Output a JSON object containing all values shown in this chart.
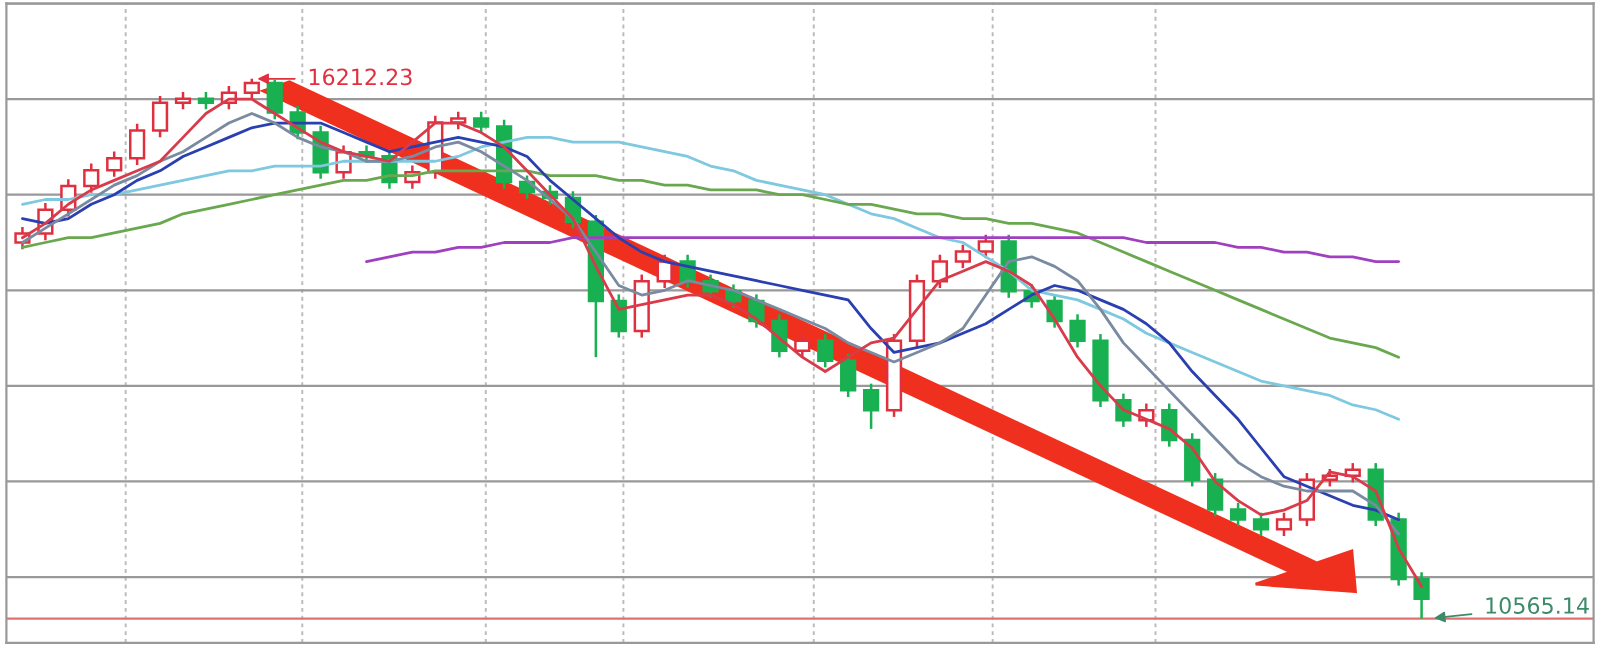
{
  "chart_data": {
    "type": "candlestick",
    "categories": [
      null,
      null,
      null,
      null,
      null,
      null,
      null,
      null,
      null,
      null,
      null,
      null,
      null,
      null,
      null,
      null,
      null,
      null,
      null,
      null,
      null,
      null,
      null,
      null,
      null,
      null,
      null,
      null,
      null,
      null,
      null,
      null,
      null,
      null,
      null,
      null,
      null,
      null,
      null,
      null,
      null,
      null,
      null,
      null,
      null,
      null,
      null,
      null,
      null,
      null,
      null,
      null,
      null,
      null,
      null,
      null,
      null,
      null,
      null,
      null,
      null,
      null
    ],
    "tick_labels": false,
    "grid": true,
    "legend": false,
    "series": [
      {
        "type": "line",
        "color": "#7ec8e0",
        "values": [
          14900,
          14950,
          14950,
          15000,
          15000,
          15050,
          15100,
          15150,
          15200,
          15250,
          15250,
          15300,
          15300,
          15300,
          15350,
          15350,
          15350,
          15350,
          15350,
          15400,
          15500,
          15550,
          15600,
          15600,
          15550,
          15550,
          15550,
          15500,
          15450,
          15400,
          15300,
          15250,
          15150,
          15100,
          15050,
          15000,
          14900,
          14800,
          14750,
          14650,
          14550,
          14500,
          14350,
          14200,
          14000,
          13950,
          13900,
          13800,
          13700,
          13550,
          13450,
          13350,
          13250,
          13150,
          13050,
          13000,
          12950,
          12900,
          12800,
          12750,
          12650,
          null
        ]
      },
      {
        "type": "line",
        "color": "#6aa84f",
        "values": [
          14450,
          14500,
          14550,
          14550,
          14600,
          14650,
          14700,
          14800,
          14850,
          14900,
          14950,
          15000,
          15050,
          15100,
          15150,
          15150,
          15200,
          15200,
          15250,
          15250,
          15250,
          15250,
          15250,
          15200,
          15200,
          15200,
          15150,
          15150,
          15100,
          15100,
          15050,
          15050,
          15050,
          15000,
          15000,
          14950,
          14900,
          14900,
          14850,
          14800,
          14800,
          14750,
          14750,
          14700,
          14700,
          14650,
          14600,
          14500,
          14400,
          14300,
          14200,
          14100,
          14000,
          13900,
          13800,
          13700,
          13600,
          13500,
          13450,
          13400,
          13300,
          null
        ]
      },
      {
        "type": "line",
        "color": "#a040c0",
        "values": [
          null,
          null,
          null,
          null,
          null,
          null,
          null,
          null,
          null,
          null,
          null,
          null,
          null,
          null,
          null,
          14300,
          14350,
          14400,
          14400,
          14450,
          14450,
          14500,
          14500,
          14500,
          14550,
          14550,
          14550,
          14550,
          14550,
          14550,
          14550,
          14550,
          14550,
          14550,
          14550,
          14550,
          14550,
          14550,
          14550,
          14550,
          14550,
          14550,
          14550,
          14550,
          14550,
          14550,
          14550,
          14550,
          14550,
          14500,
          14500,
          14500,
          14500,
          14450,
          14450,
          14400,
          14400,
          14350,
          14350,
          14300,
          14300,
          null
        ]
      },
      {
        "type": "line",
        "color": "#2a3fb0",
        "values": [
          14750,
          14700,
          14750,
          14900,
          15000,
          15150,
          15250,
          15400,
          15500,
          15600,
          15700,
          15750,
          15750,
          15750,
          15650,
          15550,
          15450,
          15500,
          15550,
          15600,
          15550,
          15500,
          15400,
          15150,
          14950,
          14750,
          14550,
          14400,
          14300,
          14250,
          14200,
          14150,
          14100,
          14050,
          14000,
          13950,
          13900,
          13600,
          13350,
          13400,
          13450,
          13550,
          13650,
          13800,
          13950,
          14050,
          14000,
          13900,
          13800,
          13650,
          13450,
          13150,
          12900,
          12650,
          12350,
          12050,
          11950,
          11850,
          11750,
          11700,
          11600,
          null
        ]
      },
      {
        "type": "line",
        "color": "#7a8aa0",
        "values": [
          14500,
          14650,
          14800,
          14950,
          15100,
          15200,
          15350,
          15450,
          15600,
          15750,
          15850,
          15750,
          15600,
          15500,
          15450,
          15350,
          15350,
          15400,
          15500,
          15550,
          15450,
          15300,
          15150,
          14950,
          14750,
          14400,
          14050,
          13950,
          14000,
          14100,
          14050,
          14000,
          13900,
          13800,
          13700,
          13600,
          13450,
          13350,
          13250,
          13350,
          13450,
          13600,
          13950,
          14300,
          14350,
          14250,
          14100,
          13800,
          13450,
          13200,
          12950,
          12700,
          12450,
          12200,
          12050,
          11950,
          11900,
          11900,
          11900,
          11750,
          11450,
          null
        ]
      },
      {
        "type": "line",
        "color": "#d93b4a",
        "values": [
          14550,
          14700,
          14900,
          15050,
          15150,
          15250,
          15350,
          15600,
          15850,
          16000,
          16000,
          15850,
          15700,
          15550,
          15450,
          15400,
          15350,
          15550,
          15750,
          15750,
          15650,
          15500,
          15250,
          15000,
          14750,
          14250,
          13800,
          13850,
          13900,
          13950,
          13950,
          13850,
          13700,
          13500,
          13300,
          13150,
          13300,
          13450,
          13500,
          13800,
          14100,
          14200,
          14300,
          14200,
          14050,
          13700,
          13300,
          13000,
          12750,
          12650,
          12550,
          12350,
          12000,
          11800,
          11650,
          11700,
          11800,
          12100,
          12050,
          11900,
          11300,
          10900
        ]
      },
      {
        "colors": [
          "#e0303f",
          "#e0303f",
          "#e0303f",
          "#e0303f",
          "#e0303f",
          "#e0303f",
          "#e0303f",
          "#e0303f",
          "#18b050",
          "#e0303f",
          "#e0303f",
          "#18b050",
          "#18b050",
          "#18b050",
          "#e0303f",
          "#18b050",
          "#18b050",
          "#e0303f",
          "#e0303f",
          "#e0303f",
          "#18b050",
          "#18b050",
          "#18b050",
          "#18b050",
          "#18b050",
          "#18b050",
          "#18b050",
          "#e0303f",
          "#e0303f",
          "#18b050",
          "#18b050",
          "#18b050",
          "#18b050",
          "#18b050",
          "#e0303f",
          "#18b050",
          "#18b050",
          "#18b050",
          "#e0303f",
          "#e0303f",
          "#e0303f",
          "#e0303f",
          "#e0303f",
          "#18b050",
          "#18b050",
          "#18b050",
          "#18b050",
          "#18b050",
          "#18b050",
          "#e0303f",
          "#18b050",
          "#18b050",
          "#18b050",
          "#18b050",
          "#18b050",
          "#e0303f",
          "#e0303f",
          "#e0303f",
          "#e0303f",
          "#18b050",
          "#18b050",
          "#18b050"
        ],
        "ohlc": [
          [
            14500,
            14663,
            14430,
            14593
          ],
          [
            14593,
            14912,
            14523,
            14842
          ],
          [
            14842,
            15161,
            14772,
            15091
          ],
          [
            15091,
            15327,
            15021,
            15257
          ],
          [
            15257,
            15452,
            15187,
            15382
          ],
          [
            15382,
            15742,
            15312,
            15672
          ],
          [
            15672,
            16033,
            15602,
            15963
          ],
          [
            15963,
            16074,
            15893,
            16004
          ],
          [
            16004,
            16074,
            15893,
            15963
          ],
          [
            15963,
            16137,
            15893,
            16067
          ],
          [
            16067,
            16212.23,
            15997,
            16170
          ],
          [
            16170,
            16200,
            15789,
            15859
          ],
          [
            15859,
            15929,
            15581,
            15651
          ],
          [
            15651,
            15721,
            15166,
            15236
          ],
          [
            15236,
            15514,
            15166,
            15444
          ],
          [
            15444,
            15514,
            15332,
            15402
          ],
          [
            15402,
            15472,
            15062,
            15132
          ],
          [
            15132,
            15306,
            15062,
            15236
          ],
          [
            15236,
            15825,
            15166,
            15755
          ],
          [
            15755,
            15867,
            15685,
            15797
          ],
          [
            15797,
            15867,
            15644,
            15714
          ],
          [
            15714,
            15784,
            15062,
            15132
          ],
          [
            15132,
            15202,
            14959,
            15029
          ],
          [
            15029,
            15099,
            14896,
            14966
          ],
          [
            14966,
            15036,
            14647,
            14717
          ],
          [
            14717,
            14787,
            13300,
            13887
          ],
          [
            13887,
            13957,
            13505,
            13575
          ],
          [
            13575,
            14164,
            13505,
            14094
          ],
          [
            14094,
            14372,
            14024,
            14302
          ],
          [
            14302,
            14372,
            14024,
            14094
          ],
          [
            14094,
            14164,
            13921,
            13991
          ],
          [
            13991,
            14061,
            13817,
            13887
          ],
          [
            13887,
            13957,
            13609,
            13679
          ],
          [
            13679,
            13749,
            13298,
            13368
          ],
          [
            13368,
            13542,
            13298,
            13472
          ],
          [
            13472,
            13542,
            13194,
            13264
          ],
          [
            13264,
            13334,
            12883,
            12953
          ],
          [
            12953,
            13023,
            12550,
            12745
          ],
          [
            12745,
            13542,
            12675,
            13472
          ],
          [
            13472,
            14164,
            13402,
            14094
          ],
          [
            14094,
            14372,
            14024,
            14302
          ],
          [
            14302,
            14476,
            14232,
            14406
          ],
          [
            14406,
            14580,
            14336,
            14510
          ],
          [
            14510,
            14580,
            13921,
            13991
          ],
          [
            13991,
            14061,
            13817,
            13887
          ],
          [
            13887,
            13957,
            13609,
            13679
          ],
          [
            13679,
            13749,
            13402,
            13472
          ],
          [
            13472,
            13542,
            12779,
            12849
          ],
          [
            12849,
            12919,
            12571,
            12641
          ],
          [
            12641,
            12815,
            12571,
            12745
          ],
          [
            12745,
            12815,
            12364,
            12434
          ],
          [
            12434,
            12504,
            11948,
            12018
          ],
          [
            12018,
            12088,
            11637,
            11707
          ],
          [
            11707,
            11777,
            11533,
            11603
          ],
          [
            11603,
            11673,
            11429,
            11499
          ],
          [
            11499,
            11673,
            11429,
            11603
          ],
          [
            11603,
            12088,
            11533,
            12018
          ],
          [
            12018,
            12130,
            11948,
            12060
          ],
          [
            12060,
            12192,
            11990,
            12122
          ],
          [
            12122,
            12192,
            11533,
            11603
          ],
          [
            11603,
            11673,
            10910,
            10980
          ],
          [
            10980,
            11050,
            10565.14,
            10773
          ]
        ]
      }
    ],
    "ref_lines": [
      {
        "axis": "y",
        "value": 10565.14,
        "color": "#e07070"
      }
    ],
    "annotations": [
      "16212.23",
      "10565.14"
    ]
  }
}
